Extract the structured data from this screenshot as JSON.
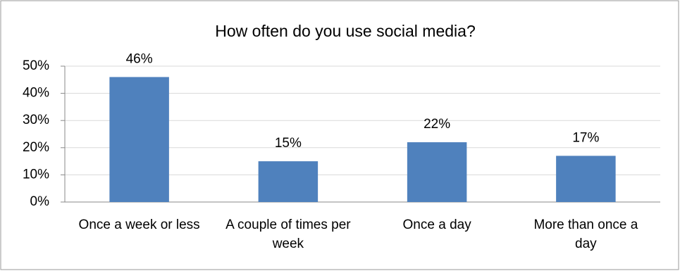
{
  "chart_data": {
    "type": "bar",
    "title": "How often do you use social media?",
    "categories": [
      "Once a week or less",
      "A couple of times per week",
      "Once a day",
      "More than once a day"
    ],
    "values": [
      46,
      15,
      22,
      17
    ],
    "value_labels": [
      "46%",
      "15%",
      "22%",
      "17%"
    ],
    "color": "#4f81bd",
    "ylim": [
      0,
      50
    ],
    "yticks": [
      {
        "value": 0,
        "label": "0%"
      },
      {
        "value": 10,
        "label": "10%"
      },
      {
        "value": 20,
        "label": "20%"
      },
      {
        "value": 30,
        "label": "30%"
      },
      {
        "value": 40,
        "label": "40%"
      },
      {
        "value": 50,
        "label": "50%"
      }
    ],
    "grid": true
  }
}
